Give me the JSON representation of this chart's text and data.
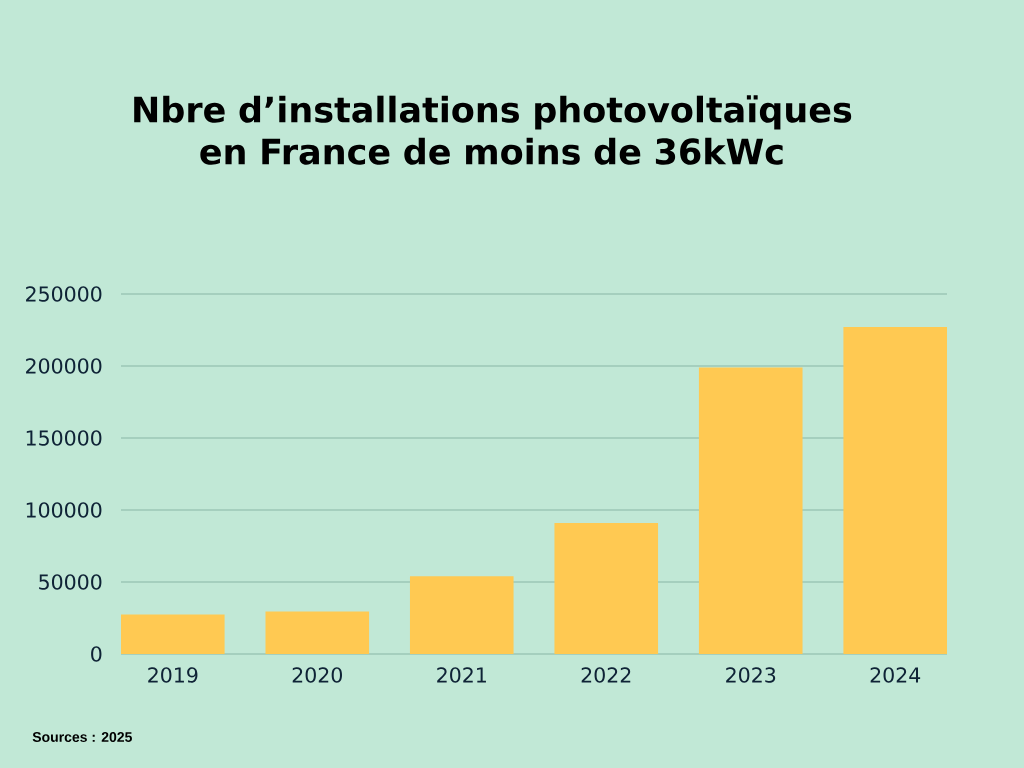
{
  "chart_data": {
    "type": "bar",
    "title": "Nbre d’installations photovoltaïques en France de moins de 36kWc",
    "categories": [
      "2019",
      "2020",
      "2021",
      "2022",
      "2023",
      "2024"
    ],
    "values": [
      27400,
      29500,
      54000,
      91000,
      199000,
      227000
    ],
    "color": "#ffc952",
    "ylim": [
      0,
      250000
    ],
    "yticks": [
      0,
      50000,
      100000,
      150000,
      200000,
      250000
    ],
    "grid": "y",
    "annotations": [
      "Sources : 2025"
    ]
  }
}
